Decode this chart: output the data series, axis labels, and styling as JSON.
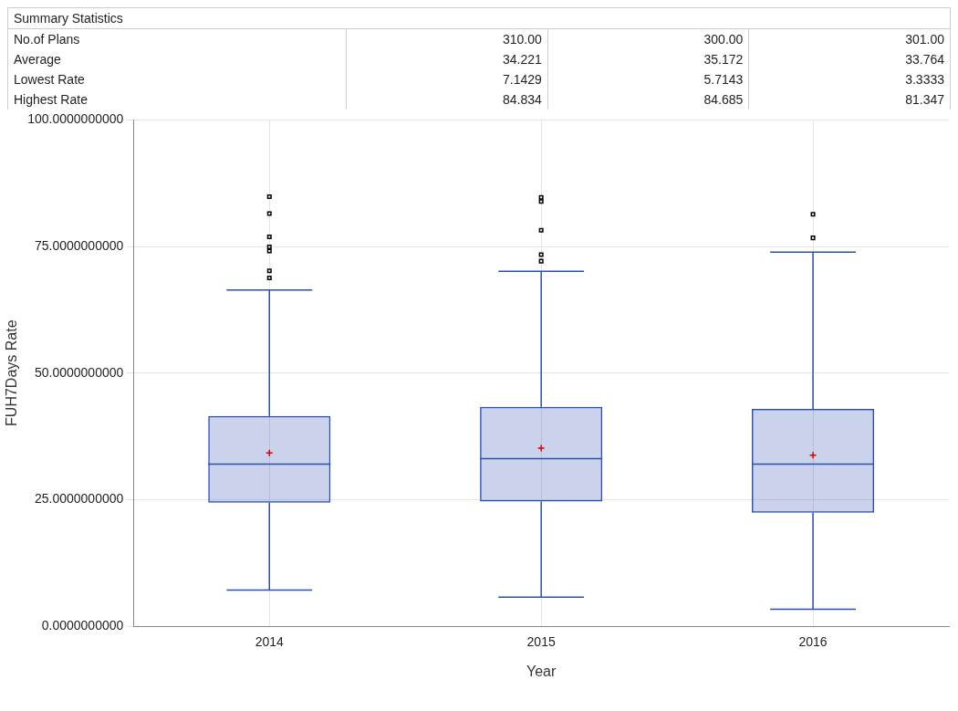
{
  "chart_data": {
    "type": "box",
    "xlabel": "Year",
    "ylabel": "FUH7Days Rate",
    "categories": [
      "2014",
      "2015",
      "2016"
    ],
    "boxes": [
      {
        "low": 7.1429,
        "q1": 24.4,
        "median": 32.0,
        "q3": 41.5,
        "high": 66.4,
        "mean": 34.221,
        "outliers": [
          84.834,
          81.5,
          76.9,
          74.9,
          74.1,
          70.2,
          68.8
        ]
      },
      {
        "low": 5.7143,
        "q1": 24.6,
        "median": 33.1,
        "q3": 43.3,
        "high": 70.1,
        "mean": 35.172,
        "outliers": [
          84.685,
          83.9,
          78.2,
          73.4,
          72.1
        ]
      },
      {
        "low": 3.3333,
        "q1": 22.4,
        "median": 32.0,
        "q3": 42.9,
        "high": 73.9,
        "mean": 33.764,
        "outliers": [
          81.347,
          76.7
        ]
      }
    ],
    "color": "#2a4fb0",
    "marker": "square",
    "ylim": [
      0,
      100
    ],
    "yticks": [
      {
        "value": 0,
        "label": "0.0000000000"
      },
      {
        "value": 25,
        "label": "25.0000000000"
      },
      {
        "value": 50,
        "label": "50.0000000000"
      },
      {
        "value": 75,
        "label": "75.0000000000"
      },
      {
        "value": 100,
        "label": "100.0000000000"
      }
    ],
    "grid": true,
    "legend": false,
    "annotations": [
      "Summary Statistics",
      "No.of Plans",
      "310.00",
      "300.00",
      "301.00",
      "Average",
      "34.221",
      "35.172",
      "33.764",
      "Lowest Rate",
      "7.1429",
      "5.7143",
      "3.3333",
      "Highest Rate",
      "84.834",
      "84.685",
      "81.347"
    ]
  }
}
